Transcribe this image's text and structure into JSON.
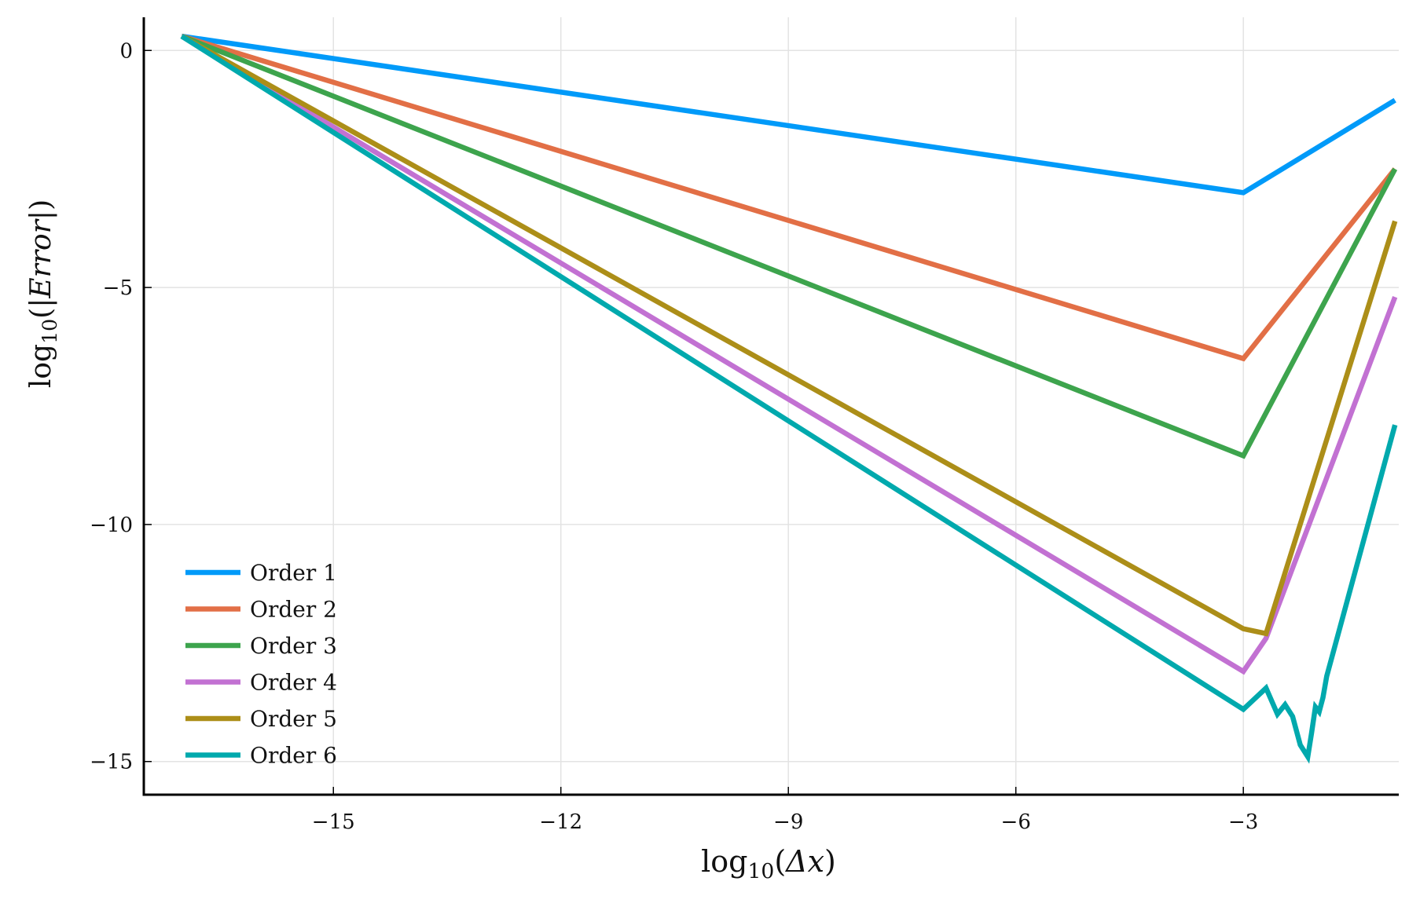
{
  "chart_data": {
    "type": "line",
    "title": "",
    "xlabel": {
      "prefix": "log",
      "sub": "10",
      "open": "(",
      "body": "Δx",
      "close": ")"
    },
    "ylabel": {
      "prefix": "log",
      "sub": "10",
      "open": "(|",
      "body": "Error",
      "close": "|)"
    },
    "xlim": [
      -17.5,
      -0.95
    ],
    "ylim": [
      -15.7,
      0.7
    ],
    "xticks": [
      -15,
      -12,
      -9,
      -6,
      -3
    ],
    "yticks": [
      0,
      -5,
      -10,
      -15
    ],
    "xtick_labels": [
      "−15",
      "−12",
      "−9",
      "−6",
      "−3"
    ],
    "ytick_labels": [
      "0",
      "−5",
      "−10",
      "−15"
    ],
    "grid": true,
    "legend_position": "bottom-left",
    "series": [
      {
        "name": "Order 1",
        "color": "#009af9",
        "x": [
          -17.0,
          -3.0,
          -1.0
        ],
        "y": [
          0.3,
          -3.0,
          -1.05
        ]
      },
      {
        "name": "Order 2",
        "color": "#e26f46",
        "x": [
          -17.0,
          -3.0,
          -1.0
        ],
        "y": [
          0.3,
          -6.5,
          -2.5
        ]
      },
      {
        "name": "Order 3",
        "color": "#3da44d",
        "x": [
          -17.0,
          -3.0,
          -1.0
        ],
        "y": [
          0.3,
          -8.55,
          -2.5
        ]
      },
      {
        "name": "Order 4",
        "color": "#c271d2",
        "x": [
          -17.0,
          -3.0,
          -2.7,
          -1.0
        ],
        "y": [
          0.3,
          -13.1,
          -12.4,
          -5.2
        ]
      },
      {
        "name": "Order 5",
        "color": "#ac8e18",
        "x": [
          -17.0,
          -3.0,
          -2.7,
          -1.0
        ],
        "y": [
          0.3,
          -12.2,
          -12.3,
          -3.6
        ]
      },
      {
        "name": "Order 6",
        "color": "#00a9ad",
        "x": [
          -17.0,
          -3.0,
          -2.7,
          -2.55,
          -2.45,
          -2.35,
          -2.25,
          -2.15,
          -2.1,
          -2.05,
          -2.0,
          -1.95,
          -1.9,
          -1.0
        ],
        "y": [
          0.3,
          -13.9,
          -13.45,
          -14.0,
          -13.8,
          -14.05,
          -14.65,
          -14.9,
          -14.4,
          -13.85,
          -13.95,
          -13.65,
          -13.2,
          -7.9
        ]
      }
    ]
  }
}
